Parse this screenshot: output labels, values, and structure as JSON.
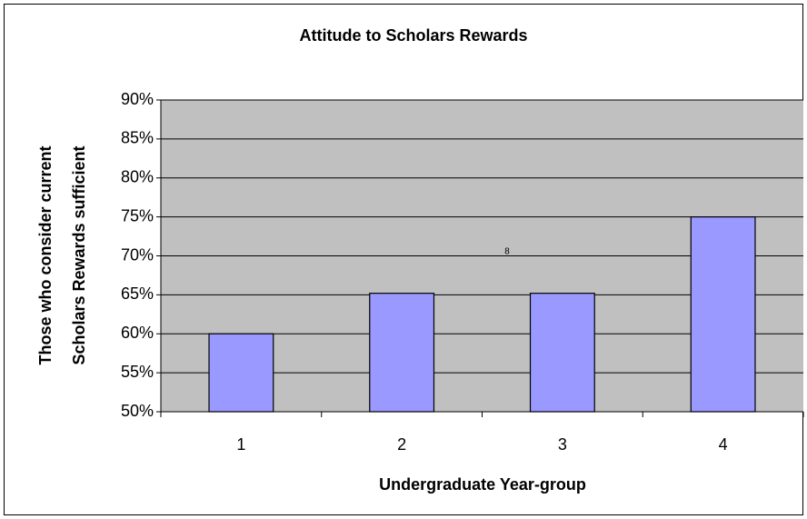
{
  "chart_data": {
    "type": "bar",
    "title": "Attitude to Scholars Rewards",
    "x_label": "Undergraduate Year-group",
    "y_label": [
      "Those who consider current",
      "Scholars Rewards sufficient"
    ],
    "annotation": "8",
    "categories": [
      "1",
      "2",
      "3",
      "4"
    ],
    "values": [
      60,
      65.2,
      65.2,
      75
    ],
    "color": "#9999ff",
    "ylim": [
      50,
      90
    ],
    "yticks": [
      {
        "value": 50,
        "label": "50%"
      },
      {
        "value": 55,
        "label": "55%"
      },
      {
        "value": 60,
        "label": "60%"
      },
      {
        "value": 65,
        "label": "65%"
      },
      {
        "value": 70,
        "label": "70%"
      },
      {
        "value": 75,
        "label": "75%"
      },
      {
        "value": 80,
        "label": "80%"
      },
      {
        "value": 85,
        "label": "85%"
      },
      {
        "value": 90,
        "label": "90%"
      }
    ],
    "grid": true
  }
}
